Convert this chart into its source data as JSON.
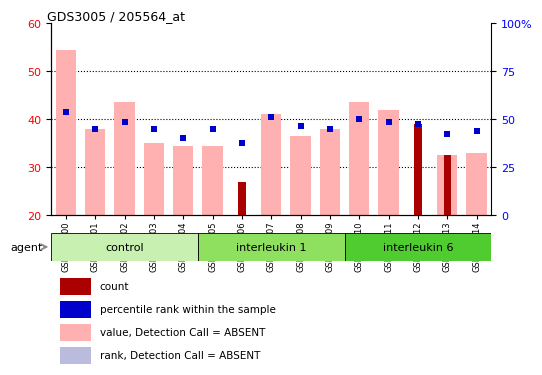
{
  "title": "GDS3005 / 205564_at",
  "samples": [
    "GSM211500",
    "GSM211501",
    "GSM211502",
    "GSM211503",
    "GSM211504",
    "GSM211505",
    "GSM211506",
    "GSM211507",
    "GSM211508",
    "GSM211509",
    "GSM211510",
    "GSM211511",
    "GSM211512",
    "GSM211513",
    "GSM211514"
  ],
  "groups": [
    {
      "label": "control",
      "indices": [
        0,
        1,
        2,
        3,
        4
      ]
    },
    {
      "label": "interleukin 1",
      "indices": [
        5,
        6,
        7,
        8,
        9
      ]
    },
    {
      "label": "interleukin 6",
      "indices": [
        10,
        11,
        12,
        13,
        14
      ]
    }
  ],
  "group_colors": [
    "#c8f0b0",
    "#90e060",
    "#50cc30"
  ],
  "ylim_left": [
    20,
    60
  ],
  "ylim_right": [
    0,
    100
  ],
  "yticks_left": [
    20,
    30,
    40,
    50,
    60
  ],
  "yticks_right": [
    0,
    25,
    50,
    75,
    100
  ],
  "ytick_right_labels": [
    "0",
    "25",
    "50",
    "75",
    "100%"
  ],
  "bar_bottom": 20,
  "value_bars": [
    54.5,
    38.0,
    43.5,
    35.0,
    34.5,
    34.5,
    20.0,
    41.0,
    36.5,
    38.0,
    43.5,
    42.0,
    20.0,
    32.5,
    33.0
  ],
  "rank_markers": [
    41.5,
    38.0,
    39.5,
    38.0,
    36.0,
    38.0,
    35.0,
    40.5,
    38.5,
    38.0,
    40.0,
    39.5,
    39.0,
    37.0,
    37.5
  ],
  "count_bars": [
    0,
    0,
    0,
    0,
    0,
    0,
    27.0,
    0,
    0,
    0,
    0,
    0,
    39.0,
    32.5,
    0
  ],
  "pct_rank_markers": [
    41.5,
    38.0,
    39.5,
    38.0,
    36.0,
    38.0,
    35.0,
    40.5,
    38.5,
    38.0,
    40.0,
    39.5,
    39.0,
    37.0,
    37.5
  ],
  "value_bar_color": "#ffb0b0",
  "rank_marker_color": "#bbbbdd",
  "count_bar_color": "#aa0000",
  "pct_rank_color": "#0000cc",
  "agent_label": "agent",
  "legend_labels": [
    "count",
    "percentile rank within the sample",
    "value, Detection Call = ABSENT",
    "rank, Detection Call = ABSENT"
  ],
  "legend_colors": [
    "#aa0000",
    "#0000cc",
    "#ffb0b0",
    "#bbbbdd"
  ]
}
